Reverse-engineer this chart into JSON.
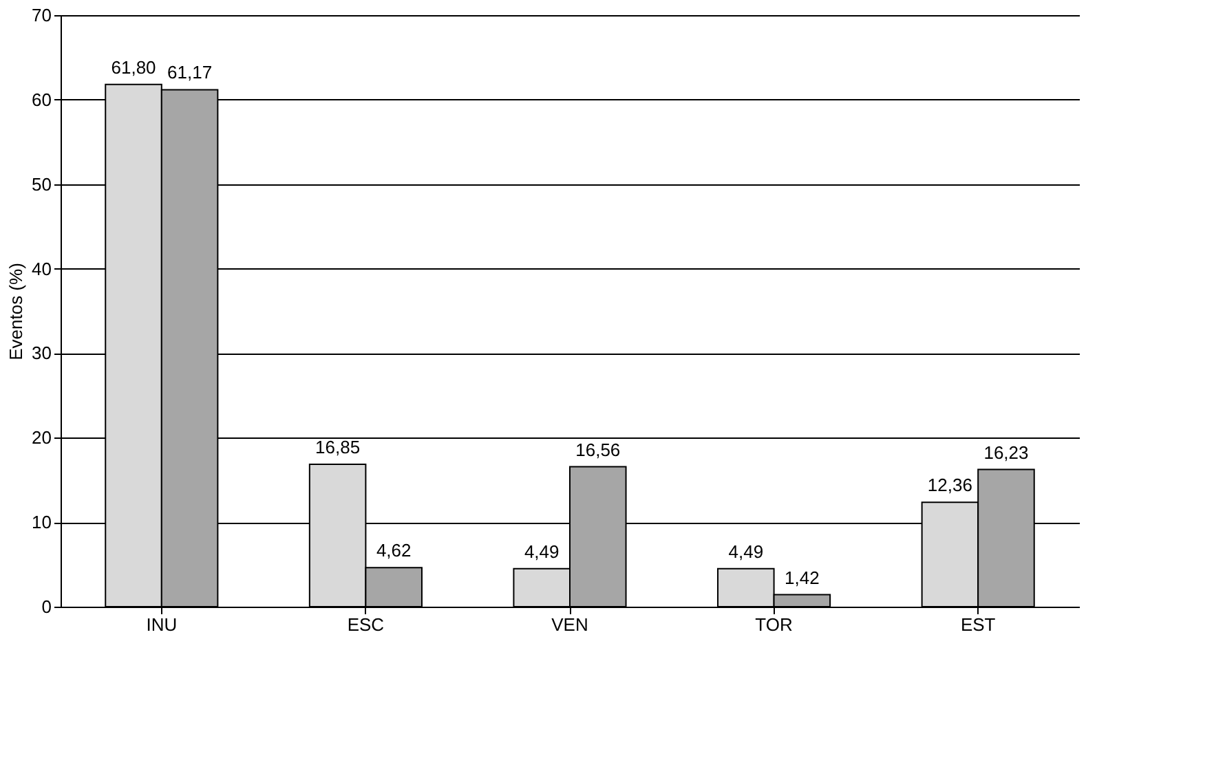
{
  "chart_data": {
    "type": "bar",
    "ylabel": "Eventos (%)",
    "categories": [
      "INU",
      "ESC",
      "VEN",
      "TOR",
      "EST"
    ],
    "series": [
      {
        "color": "#d9d9d9",
        "values": [
          61.8,
          16.85,
          4.49,
          4.49,
          12.36
        ],
        "value_labels": [
          "61,80",
          "16,85",
          "4,49",
          "4,49",
          "12,36"
        ]
      },
      {
        "color": "#a6a6a6",
        "values": [
          61.17,
          4.62,
          16.56,
          1.42,
          16.23
        ],
        "value_labels": [
          "61,17",
          "4,62",
          "16,56",
          "1,42",
          "16,23"
        ]
      }
    ],
    "ylim": [
      0,
      70
    ],
    "yticks": [
      0,
      10,
      20,
      30,
      40,
      50,
      60,
      70
    ],
    "grid": "y",
    "legend": false
  }
}
